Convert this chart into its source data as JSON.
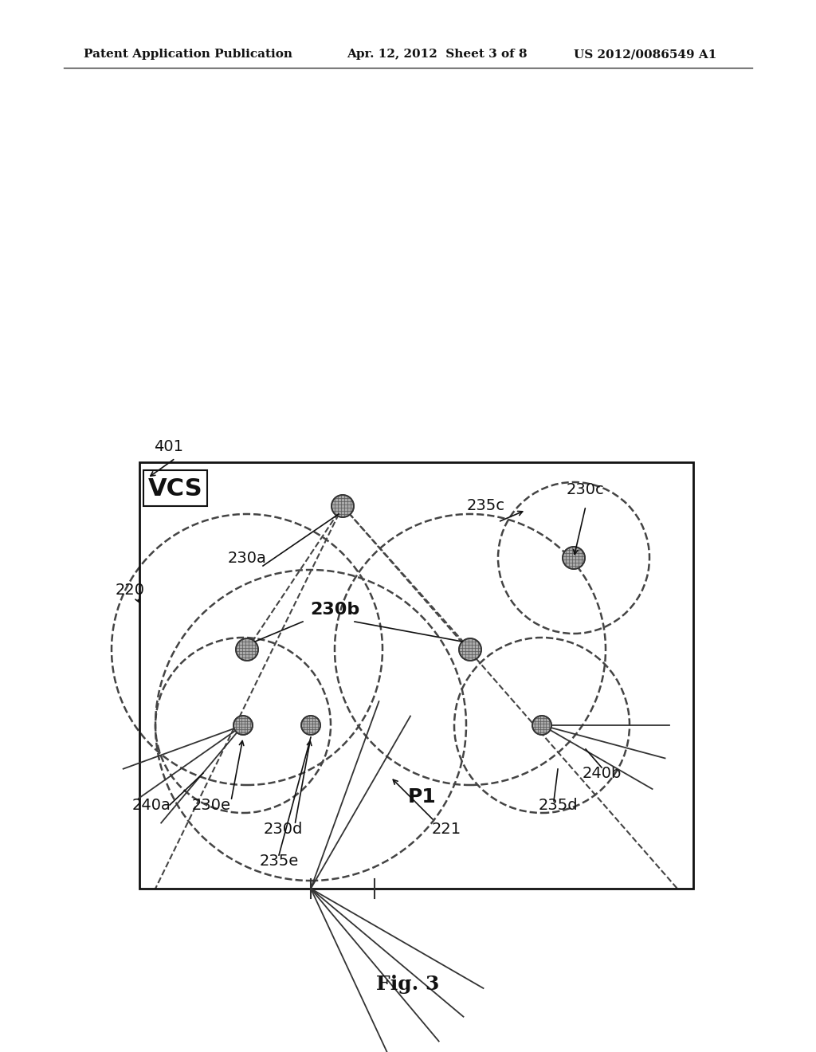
{
  "bg_color": "#ffffff",
  "header_left": "Patent Application Publication",
  "header_mid": "Apr. 12, 2012  Sheet 3 of 8",
  "header_right": "US 2012/0086549 A1",
  "fig_caption": "Fig. 3",
  "box_label": "VCS",
  "label_401": "401",
  "label_220": "220",
  "label_230a": "230a",
  "label_230b": "230b",
  "label_230c": "230c",
  "label_230d": "230d",
  "label_230e": "230e",
  "label_235c": "235c",
  "label_235d": "235d",
  "label_235e": "235e",
  "label_240a": "240a",
  "label_240b": "240b",
  "label_221": "221",
  "label_P1": "P1"
}
